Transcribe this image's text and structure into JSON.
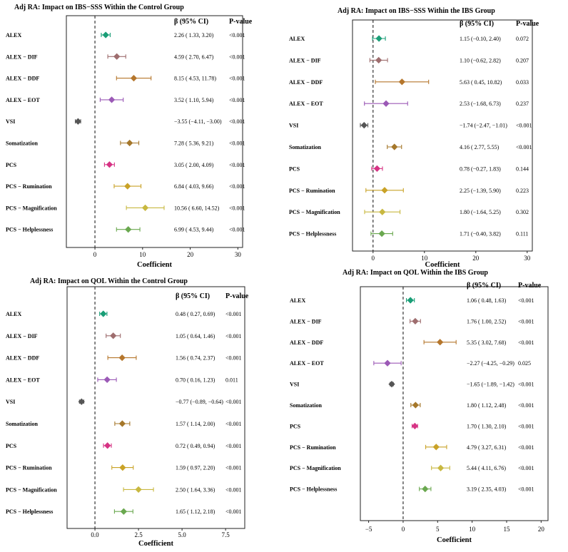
{
  "colors": [
    "#1a9e77",
    "#9e6d6e",
    "#b5762c",
    "#9b59b6",
    "#555555",
    "#a5772a",
    "#d63384",
    "#c9a227",
    "#c8b840",
    "#6aa84f"
  ],
  "chart_data": [
    {
      "type": "forest",
      "title": "Adj RA: Impact on IBS−SSS Within the Control Group",
      "xlabel": "Coefficient",
      "col_ci": "β (95% CI)",
      "col_p": "P-value",
      "xlim": [
        -6,
        31
      ],
      "xticks": [
        0,
        10,
        20,
        30
      ],
      "tick_labels": [
        "0",
        "10",
        "20",
        "30"
      ],
      "rows": [
        {
          "label": "ALEX",
          "beta": 2.26,
          "lo": 1.33,
          "hi": 3.2,
          "ci": "2.26 ( 1.33, 3.20)",
          "p": "<0.001"
        },
        {
          "label": "ALEX − DIF",
          "beta": 4.59,
          "lo": 2.7,
          "hi": 6.47,
          "ci": "4.59 ( 2.70, 6.47)",
          "p": "<0.001"
        },
        {
          "label": "ALEX − DDF",
          "beta": 8.15,
          "lo": 4.53,
          "hi": 11.78,
          "ci": "8.15 ( 4.53, 11.78)",
          "p": "<0.001"
        },
        {
          "label": "ALEX − EOT",
          "beta": 3.52,
          "lo": 1.1,
          "hi": 5.94,
          "ci": "3.52 ( 1.10, 5.94)",
          "p": "<0.001"
        },
        {
          "label": "VSI",
          "beta": -3.55,
          "lo": -4.11,
          "hi": -3.0,
          "ci": "−3.55 (−4.11, −3.00)",
          "p": "<0.001"
        },
        {
          "label": "Somatization",
          "beta": 7.28,
          "lo": 5.36,
          "hi": 9.21,
          "ci": "7.28 ( 5.36, 9.21)",
          "p": "<0.001"
        },
        {
          "label": "PCS",
          "beta": 3.05,
          "lo": 2.0,
          "hi": 4.09,
          "ci": "3.05 ( 2.00, 4.09)",
          "p": "<0.001"
        },
        {
          "label": "PCS − Rumination",
          "beta": 6.84,
          "lo": 4.03,
          "hi": 9.66,
          "ci": "6.84 ( 4.03, 9.66)",
          "p": "<0.001"
        },
        {
          "label": "PCS − Magnification",
          "beta": 10.56,
          "lo": 6.6,
          "hi": 14.52,
          "ci": "10.56 ( 6.60, 14.52)",
          "p": "<0.001"
        },
        {
          "label": "PCS − Helplessness",
          "beta": 6.99,
          "lo": 4.53,
          "hi": 9.44,
          "ci": "6.99 ( 4.53, 9.44)",
          "p": "<0.001"
        }
      ]
    },
    {
      "type": "forest",
      "title": "Adj RA: Impact on IBS−SSS Within the IBS Group",
      "xlabel": "Coefficient",
      "col_ci": "β (95% CI)",
      "col_p": "P-value",
      "xlim": [
        -4,
        31
      ],
      "xticks": [
        0,
        10,
        20,
        30
      ],
      "tick_labels": [
        "0",
        "10",
        "20",
        "30"
      ],
      "rows": [
        {
          "label": "ALEX",
          "beta": 1.15,
          "lo": -0.1,
          "hi": 2.4,
          "ci": "1.15 (−0.10, 2.40)",
          "p": "0.072"
        },
        {
          "label": "ALEX − DIF",
          "beta": 1.1,
          "lo": -0.62,
          "hi": 2.82,
          "ci": "1.10 (−0.62, 2.82)",
          "p": "0.207"
        },
        {
          "label": "ALEX − DDF",
          "beta": 5.63,
          "lo": 0.45,
          "hi": 10.82,
          "ci": "5.63 ( 0.45, 10.82)",
          "p": "0.033"
        },
        {
          "label": "ALEX − EOT",
          "beta": 2.53,
          "lo": -1.68,
          "hi": 6.73,
          "ci": "2.53 (−1.68, 6.73)",
          "p": "0.237"
        },
        {
          "label": "VSI",
          "beta": -1.74,
          "lo": -2.47,
          "hi": -1.01,
          "ci": "−1.74 (−2.47, −1.01)",
          "p": "<0.001"
        },
        {
          "label": "Somatization",
          "beta": 4.16,
          "lo": 2.77,
          "hi": 5.55,
          "ci": "4.16 ( 2.77, 5.55)",
          "p": "<0.001"
        },
        {
          "label": "PCS",
          "beta": 0.78,
          "lo": -0.27,
          "hi": 1.83,
          "ci": "0.78 (−0.27, 1.83)",
          "p": "0.144"
        },
        {
          "label": "PCS − Rumination",
          "beta": 2.25,
          "lo": -1.39,
          "hi": 5.9,
          "ci": "2.25 (−1.39, 5.90)",
          "p": "0.223"
        },
        {
          "label": "PCS − Magnification",
          "beta": 1.8,
          "lo": -1.64,
          "hi": 5.25,
          "ci": "1.80 (−1.64, 5.25)",
          "p": "0.302"
        },
        {
          "label": "PCS − Helplessness",
          "beta": 1.71,
          "lo": -0.4,
          "hi": 3.82,
          "ci": "1.71 (−0.40, 3.82)",
          "p": "0.111"
        }
      ]
    },
    {
      "type": "forest",
      "title": "Adj RA: Impact on QOL Within the Control Group",
      "xlabel": "Coefficient",
      "col_ci": "β (95% CI)",
      "col_p": "P-value",
      "xlim": [
        -1.6,
        8.6
      ],
      "xticks": [
        0,
        2.5,
        5,
        7.5
      ],
      "tick_labels": [
        "0.0",
        "2.5",
        "5.0",
        "7.5"
      ],
      "rows": [
        {
          "label": "ALEX",
          "beta": 0.48,
          "lo": 0.27,
          "hi": 0.69,
          "ci": "0.48 ( 0.27, 0.69)",
          "p": "<0.001"
        },
        {
          "label": "ALEX − DIF",
          "beta": 1.05,
          "lo": 0.64,
          "hi": 1.46,
          "ci": "1.05 ( 0.64, 1.46)",
          "p": "<0.001"
        },
        {
          "label": "ALEX − DDF",
          "beta": 1.56,
          "lo": 0.74,
          "hi": 2.37,
          "ci": "1.56 ( 0.74, 2.37)",
          "p": "<0.001"
        },
        {
          "label": "ALEX − EOT",
          "beta": 0.7,
          "lo": 0.16,
          "hi": 1.23,
          "ci": "0.70 ( 0.16, 1.23)",
          "p": "0.011"
        },
        {
          "label": "VSI",
          "beta": -0.77,
          "lo": -0.89,
          "hi": -0.64,
          "ci": "−0.77 (−0.89, −0.64)",
          "p": "<0.001"
        },
        {
          "label": "Somatization",
          "beta": 1.57,
          "lo": 1.14,
          "hi": 2.0,
          "ci": "1.57 ( 1.14, 2.00)",
          "p": "<0.001"
        },
        {
          "label": "PCS",
          "beta": 0.72,
          "lo": 0.49,
          "hi": 0.94,
          "ci": "0.72 ( 0.49, 0.94)",
          "p": "<0.001"
        },
        {
          "label": "PCS − Rumination",
          "beta": 1.59,
          "lo": 0.97,
          "hi": 2.2,
          "ci": "1.59 ( 0.97, 2.20)",
          "p": "<0.001"
        },
        {
          "label": "PCS − Magnification",
          "beta": 2.5,
          "lo": 1.64,
          "hi": 3.36,
          "ci": "2.50 ( 1.64, 3.36)",
          "p": "<0.001"
        },
        {
          "label": "PCS − Helplessness",
          "beta": 1.65,
          "lo": 1.12,
          "hi": 2.18,
          "ci": "1.65 ( 1.12, 2.18)",
          "p": "<0.001"
        }
      ]
    },
    {
      "type": "forest",
      "title": "Adj RA: Impact on QOL Within the IBS Group",
      "xlabel": "Coefficient",
      "col_ci": "β (95% CI)",
      "col_p": "P-value",
      "xlim": [
        -6.2,
        21
      ],
      "xticks": [
        -5,
        0,
        5,
        10,
        15,
        20
      ],
      "tick_labels": [
        "−5",
        "0",
        "5",
        "10",
        "15",
        "20"
      ],
      "rows": [
        {
          "label": "ALEX",
          "beta": 1.06,
          "lo": 0.48,
          "hi": 1.63,
          "ci": "1.06 ( 0.48, 1.63)",
          "p": "<0.001"
        },
        {
          "label": "ALEX − DIF",
          "beta": 1.76,
          "lo": 1.0,
          "hi": 2.52,
          "ci": "1.76 ( 1.00, 2.52)",
          "p": "<0.001"
        },
        {
          "label": "ALEX − DDF",
          "beta": 5.35,
          "lo": 3.02,
          "hi": 7.68,
          "ci": "5.35 ( 3.02, 7.68)",
          "p": "<0.001"
        },
        {
          "label": "ALEX − EOT",
          "beta": -2.27,
          "lo": -4.25,
          "hi": -0.29,
          "ci": "−2.27 (−4.25, −0.29)",
          "p": "0.025"
        },
        {
          "label": "VSI",
          "beta": -1.65,
          "lo": -1.89,
          "hi": -1.42,
          "ci": "−1.65 (−1.89, −1.42)",
          "p": "<0.001"
        },
        {
          "label": "Somatization",
          "beta": 1.8,
          "lo": 1.12,
          "hi": 2.48,
          "ci": "1.80 ( 1.12, 2.48)",
          "p": "<0.001"
        },
        {
          "label": "PCS",
          "beta": 1.7,
          "lo": 1.3,
          "hi": 2.1,
          "ci": "1.70 ( 1.30, 2.10)",
          "p": "<0.001"
        },
        {
          "label": "PCS − Rumination",
          "beta": 4.79,
          "lo": 3.27,
          "hi": 6.31,
          "ci": "4.79 ( 3.27, 6.31)",
          "p": "<0.001"
        },
        {
          "label": "PCS − Magnification",
          "beta": 5.44,
          "lo": 4.11,
          "hi": 6.76,
          "ci": "5.44 ( 4.11, 6.76)",
          "p": "<0.001"
        },
        {
          "label": "PCS − Helplessness",
          "beta": 3.19,
          "lo": 2.35,
          "hi": 4.03,
          "ci": "3.19 ( 2.35, 4.03)",
          "p": "<0.001"
        }
      ]
    }
  ]
}
